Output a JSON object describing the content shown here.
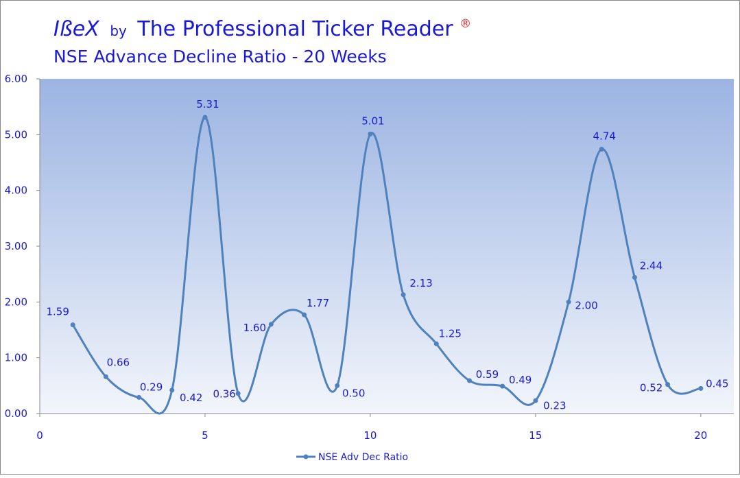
{
  "chart_data": {
    "type": "line",
    "title": {
      "brand": "IßeX",
      "by": "by",
      "name": "The Professional Ticker Reader",
      "mark": "®"
    },
    "subtitle": "NSE Advance Decline Ratio - 20 Weeks",
    "x": [
      1,
      2,
      3,
      4,
      5,
      6,
      7,
      8,
      9,
      10,
      11,
      12,
      13,
      14,
      15,
      16,
      17,
      18,
      19,
      20
    ],
    "series": [
      {
        "name": "NSE Adv Dec Ratio",
        "color": "#4f81bd",
        "values": [
          1.59,
          0.66,
          0.29,
          0.42,
          5.31,
          0.36,
          1.6,
          1.77,
          0.5,
          5.01,
          2.13,
          1.25,
          0.59,
          0.49,
          0.23,
          2.0,
          4.74,
          2.44,
          0.52,
          0.45
        ],
        "value_labels": [
          "1.59",
          "0.66",
          "0.29",
          "0.42",
          "5.31",
          "0.36",
          "1.60",
          "1.77",
          "0.50",
          "5.01",
          "2.13",
          "1.25",
          "0.59",
          "0.49",
          "0.23",
          "2.00",
          "4.74",
          "2.44",
          "0.52",
          "0.45"
        ]
      }
    ],
    "xlim": [
      0,
      21
    ],
    "xticks": [
      0,
      5,
      10,
      15,
      20
    ],
    "ylim": [
      0,
      6
    ],
    "yticks": [
      {
        "value": 0,
        "label": "0.00"
      },
      {
        "value": 1,
        "label": "1.00"
      },
      {
        "value": 2,
        "label": "2.00"
      },
      {
        "value": 3,
        "label": "3.00"
      },
      {
        "value": 4,
        "label": "4.00"
      },
      {
        "value": 5,
        "label": "5.00"
      },
      {
        "value": 6,
        "label": "6.00"
      }
    ],
    "smooth": true,
    "legend": "bottom"
  }
}
